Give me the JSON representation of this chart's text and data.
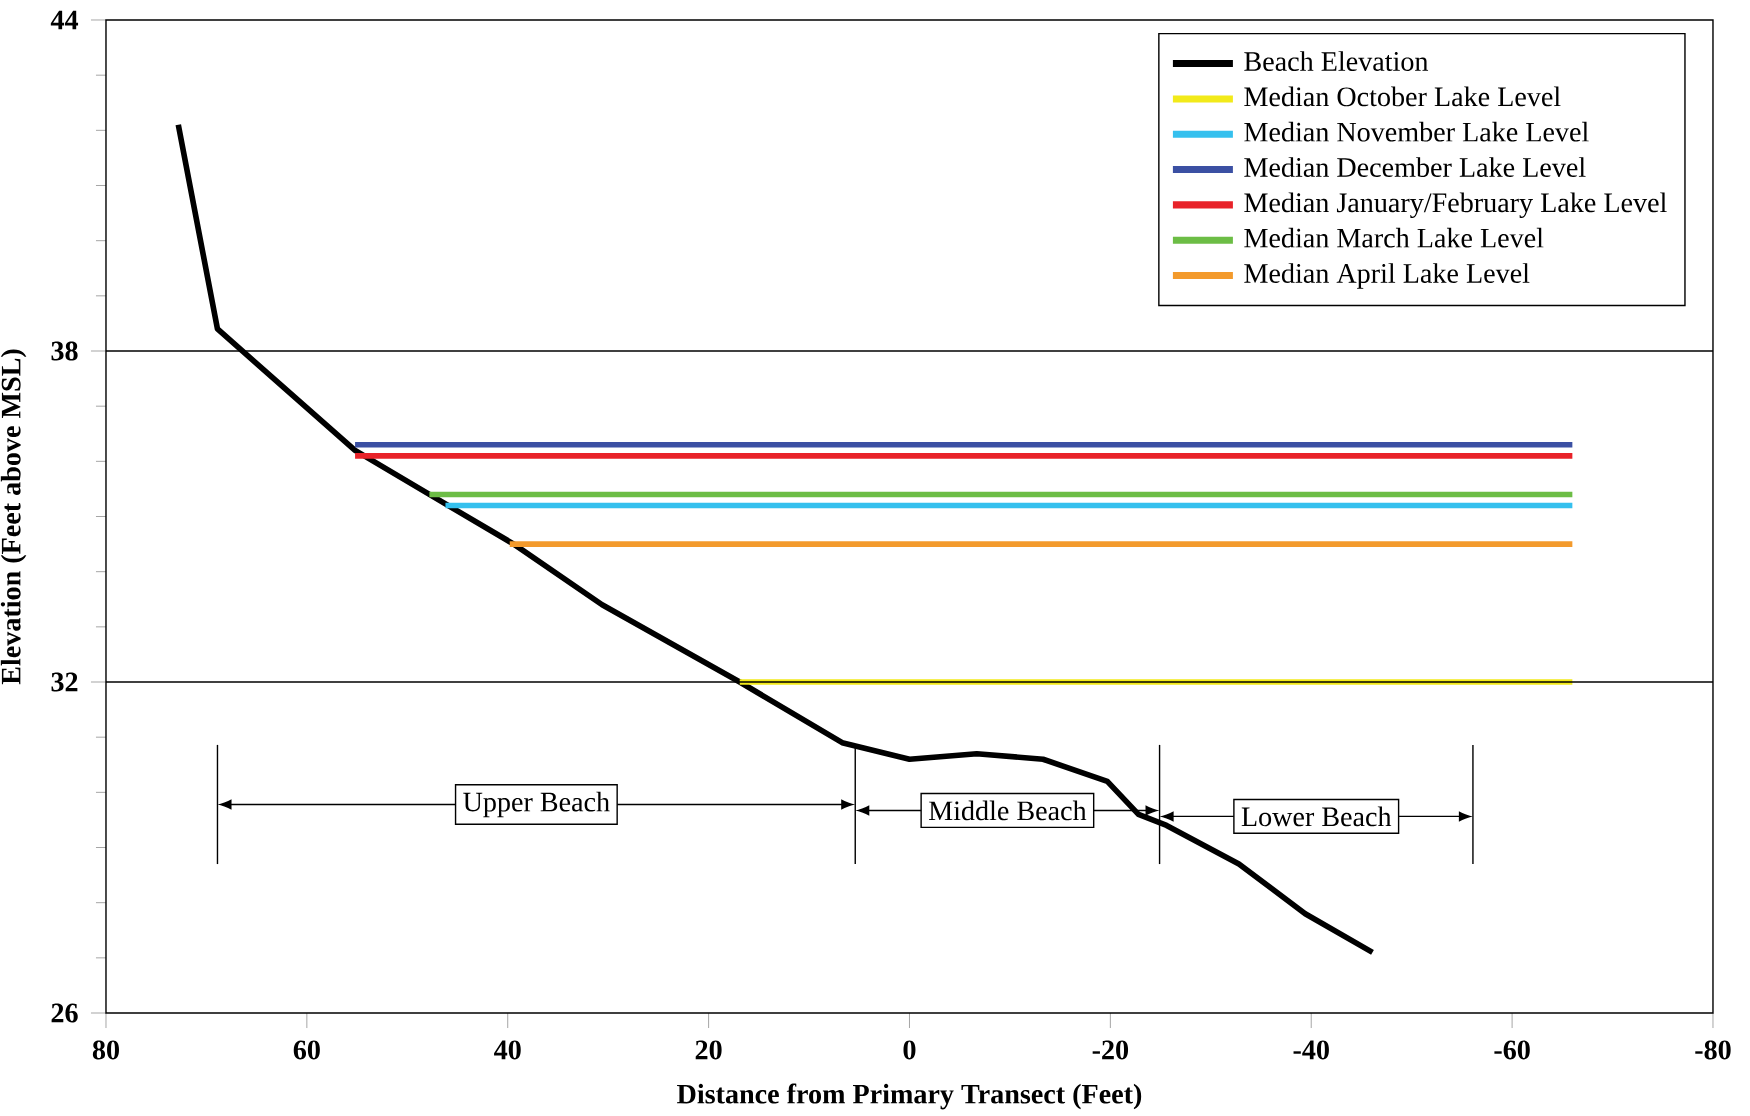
{
  "chart_data": {
    "type": "line",
    "xlabel": "Distance from Primary Transect (Feet)",
    "ylabel": "Elevation (Feet above MSL)",
    "xlim": [
      80,
      -80
    ],
    "xticks": [
      80,
      60,
      40,
      20,
      0,
      -20,
      -40,
      -60,
      -80
    ],
    "ylim": [
      26,
      44
    ],
    "yticks": [
      26,
      32,
      38,
      44
    ],
    "legend": "top right",
    "marker": "none",
    "line_style": "solid",
    "series": [
      {
        "name": "Beach Elevation",
        "color": "#000000",
        "x": [
          72.8,
          68.9,
          55.2,
          47.8,
          39.4,
          30.6,
          16.9,
          6.7,
          0,
          -6.7,
          -13.3,
          -19.7,
          -22.8,
          -25.6,
          -32.8,
          -39.4,
          -46.1
        ],
        "values": [
          42.1,
          38.4,
          36.2,
          35.4,
          34.5,
          33.4,
          32.0,
          30.9,
          30.6,
          30.7,
          30.6,
          30.2,
          29.6,
          29.4,
          28.7,
          27.8,
          27.1
        ]
      },
      {
        "name": "Median October Lake Level",
        "color": "#f2ea1a",
        "x": [
          16.9,
          -66
        ],
        "values": [
          32.0,
          32.0
        ]
      },
      {
        "name": "Median November Lake Level",
        "color": "#35c0ee",
        "x": [
          46.2,
          -66
        ],
        "values": [
          35.2,
          35.2
        ]
      },
      {
        "name": "Median December Lake Level",
        "color": "#3b50a3",
        "x": [
          55.2,
          -66
        ],
        "values": [
          36.3,
          36.3
        ]
      },
      {
        "name": "Median January/February Lake Level",
        "color": "#e82229",
        "x": [
          55.2,
          -66
        ],
        "values": [
          36.1,
          36.1
        ]
      },
      {
        "name": "Median March Lake Level",
        "color": "#6cbd45",
        "x": [
          47.8,
          -66
        ],
        "values": [
          35.4,
          35.4
        ]
      },
      {
        "name": "Median April Lake Level",
        "color": "#f39a2c",
        "x": [
          39.8,
          -66
        ],
        "values": [
          34.5,
          34.5
        ]
      }
    ],
    "ref_lines": [
      {
        "axis": "y",
        "value": 32
      },
      {
        "axis": "y",
        "value": 38
      },
      {
        "axis": "x",
        "value": 68.9
      },
      {
        "axis": "x",
        "value": 5.4
      },
      {
        "axis": "x",
        "value": -24.9
      },
      {
        "axis": "x",
        "value": -56.1
      }
    ],
    "annotations": [
      "Upper Beach",
      "Middle Beach",
      "Lower Beach"
    ]
  }
}
